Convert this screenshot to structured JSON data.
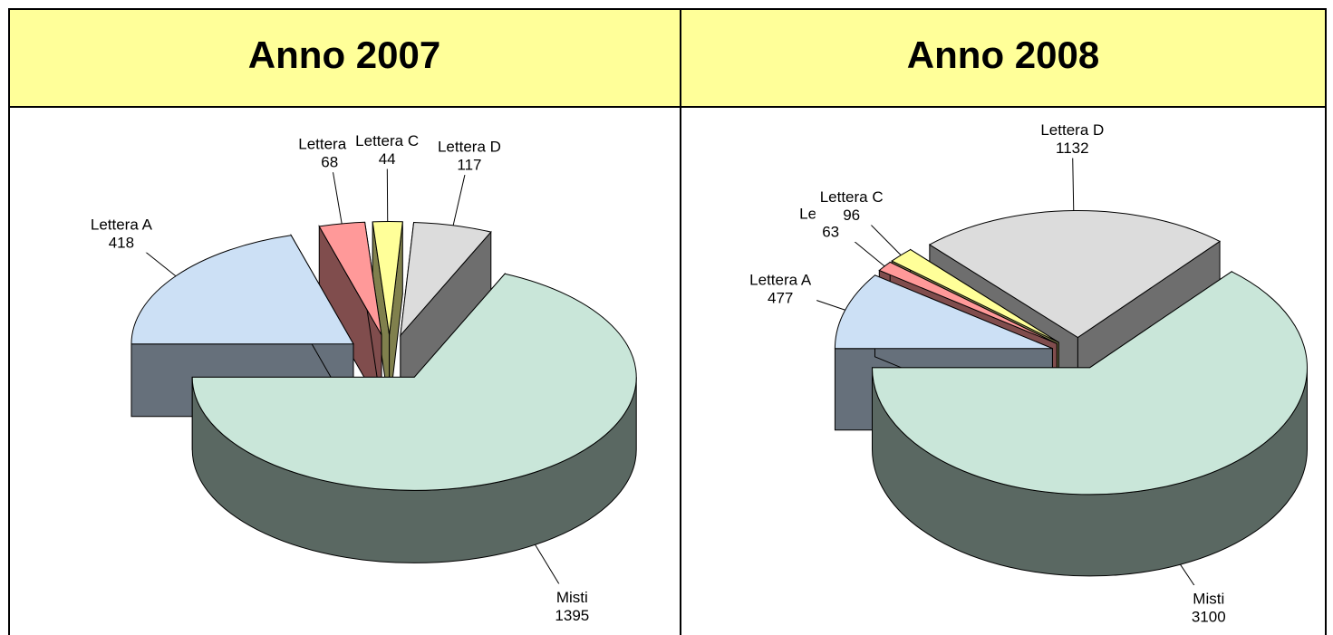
{
  "chart_data": [
    {
      "type": "pie",
      "title": "Anno 2007",
      "categories": [
        "Lettera A",
        "Lettera B",
        "Lettera C",
        "Lettera D",
        "Misti"
      ],
      "values": [
        418,
        68,
        44,
        117,
        1395
      ],
      "colors": [
        "#cce0f5",
        "#ff9999",
        "#ffff99",
        "#dcdcdc",
        "#c9e6d9"
      ]
    },
    {
      "type": "pie",
      "title": "Anno 2008",
      "categories": [
        "Lettera A",
        "Lettera B",
        "Lettera C",
        "Lettera D",
        "Misti"
      ],
      "values": [
        477,
        63,
        96,
        1132,
        3100
      ],
      "colors": [
        "#cce0f5",
        "#ff9999",
        "#ffff99",
        "#dcdcdc",
        "#c9e6d9"
      ]
    }
  ]
}
